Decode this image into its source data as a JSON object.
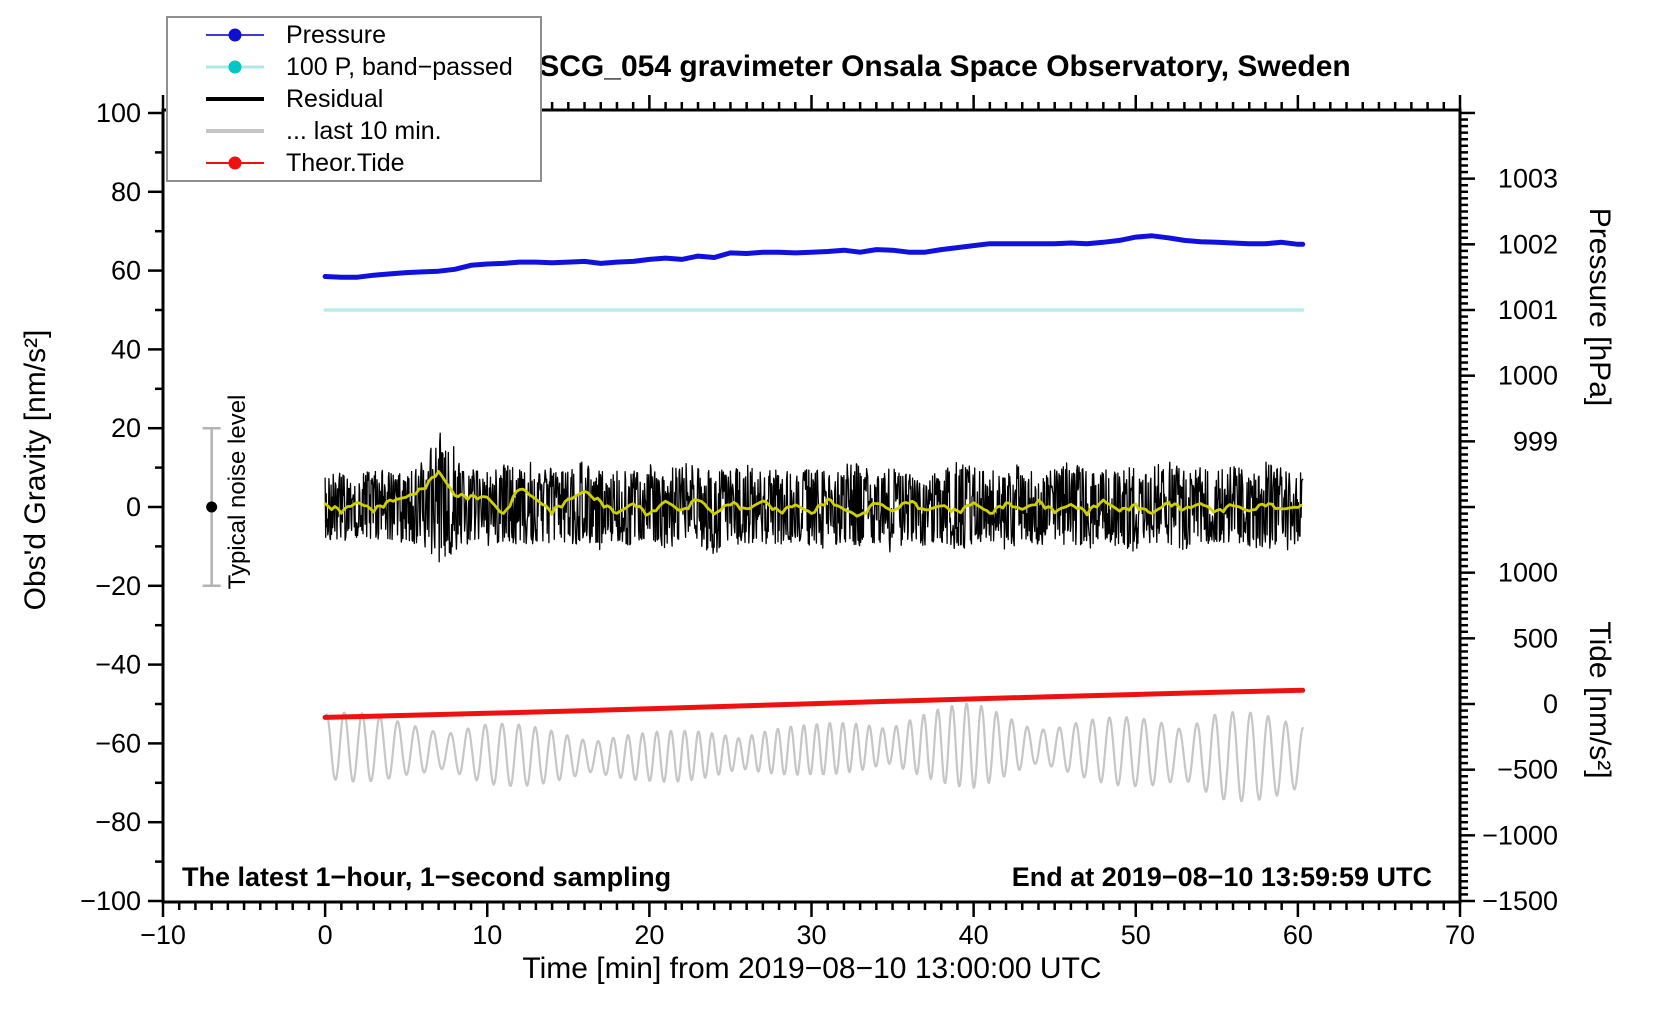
{
  "page": {
    "background": "#ffffff"
  },
  "colors": {
    "pressure_line": "#1111dd",
    "band_passed_line": "#b9ecec",
    "residual_line": "#000000",
    "residual_smooth_line": "#cfcf00",
    "last10_line": "#c6c6c6",
    "tide_line": "#ee1111",
    "noise_bar": "#b3b3b3",
    "frame": "#000000",
    "legend_border": "#8f8f8f"
  },
  "chart_data": {
    "type": "line",
    "title": "SCG_054 gravimeter Onsala Space Observatory, Sweden",
    "xlabel": "Time [min] from 2019−08−10 13:00:00 UTC",
    "ylabel_left": "Obs'd Gravity [nm/s²]",
    "ylabel_pressure": "Pressure [hPa]",
    "ylabel_tide": "Tide [nm/s²]",
    "annotations": {
      "sampling": "The latest 1−hour, 1−second sampling",
      "end_time": "End at 2019−08−10 13:59:59 UTC",
      "noise": "Typical noise level"
    },
    "legend": [
      {
        "label": "Pressure",
        "color": "#3b3bd8",
        "dot": "#0f0fd0",
        "line_width": 2.5,
        "has_dot": true
      },
      {
        "label": "100 P, band−passed",
        "color": "#ade9e9",
        "dot": "#00c6c6",
        "line_width": 3,
        "has_dot": true
      },
      {
        "label": "Residual",
        "color": "#000000",
        "dot": "#000000",
        "line_width": 4.5,
        "has_dot": false
      },
      {
        "label": "... last 10 min.",
        "color": "#c6c6c6",
        "dot": "#c6c6c6",
        "line_width": 4.5,
        "has_dot": false
      },
      {
        "label": "Theor.Tide",
        "color": "#ee1111",
        "dot": "#ee1111",
        "line_width": 2.5,
        "has_dot": true
      }
    ],
    "axes": {
      "x": {
        "min": -10,
        "max": 70,
        "major": 10,
        "minor": 1,
        "tick_labels": [
          -10,
          0,
          10,
          20,
          30,
          40,
          50,
          60,
          70
        ]
      },
      "gravity": {
        "min": -100,
        "max": 100,
        "major": 20,
        "minor": 10,
        "tick_labels": [
          100,
          80,
          60,
          40,
          20,
          0,
          -20,
          -40,
          -60,
          -80,
          -100
        ]
      },
      "pressure": {
        "tick_labels": [
          1003,
          1002,
          1001,
          1000,
          999
        ],
        "minor_step": 0.1,
        "minor_range": [
          997.7,
          1004.0
        ],
        "ref_hpa": 1001,
        "ref_gravity": 50,
        "gravity_per_hpa": 16.67
      },
      "tide": {
        "tick_labels": [
          1000,
          500,
          0,
          -500,
          -1000,
          -1500
        ],
        "minor_step": 50,
        "minor_range": [
          -1500,
          1350
        ],
        "ref_tide": 0,
        "ref_gravity": -50,
        "tide_per_gravity": 30
      }
    },
    "noise_bar": {
      "t": -7,
      "center_gravity": 0,
      "half_range": 20
    },
    "series": {
      "pressure_hpa": {
        "t_start": 0,
        "t_step": 1,
        "t_end": 60.3,
        "values": [
          1001.51,
          1001.5,
          1001.5,
          1001.53,
          1001.55,
          1001.57,
          1001.58,
          1001.59,
          1001.62,
          1001.68,
          1001.7,
          1001.71,
          1001.73,
          1001.73,
          1001.72,
          1001.73,
          1001.74,
          1001.71,
          1001.73,
          1001.74,
          1001.77,
          1001.79,
          1001.77,
          1001.82,
          1001.8,
          1001.87,
          1001.86,
          1001.88,
          1001.88,
          1001.87,
          1001.88,
          1001.89,
          1001.91,
          1001.88,
          1001.92,
          1001.91,
          1001.88,
          1001.88,
          1001.92,
          1001.95,
          1001.98,
          1002.01,
          1002.01,
          1002.01,
          1002.01,
          1002.01,
          1002.02,
          1002.01,
          1002.03,
          1002.06,
          1002.11,
          1002.13,
          1002.1,
          1002.06,
          1002.04,
          1002.03,
          1002.02,
          1002.01,
          1002.01,
          1002.03,
          1002.0
        ]
      },
      "band_passed_100P": {
        "gravity_value": 50,
        "t_start": 0,
        "t_end": 60.3
      },
      "residual_envelope": {
        "t_start": 0,
        "t_step": 1,
        "hi": [
          8,
          9,
          8,
          10,
          9,
          9,
          12,
          21,
          15,
          10,
          9,
          11,
          10,
          12,
          10,
          9,
          12,
          9,
          10,
          9,
          11,
          9,
          12,
          10,
          9,
          10,
          11,
          9,
          10,
          9,
          10,
          9,
          11,
          12,
          9,
          10,
          9,
          10,
          9,
          12,
          10,
          9,
          10,
          11,
          9,
          10,
          12,
          9,
          10,
          9,
          11,
          10,
          12,
          9,
          10,
          9,
          11,
          9,
          12,
          10,
          9
        ],
        "lo": [
          -8,
          -9,
          -8,
          -9,
          -10,
          -9,
          -10,
          -14,
          -12,
          -9,
          -10,
          -9,
          -11,
          -9,
          -10,
          -9,
          -10,
          -11,
          -9,
          -10,
          -9,
          -11,
          -9,
          -10,
          -12,
          -9,
          -10,
          -9,
          -11,
          -9,
          -10,
          -11,
          -9,
          -10,
          -9,
          -12,
          -9,
          -10,
          -9,
          -11,
          -10,
          -9,
          -11,
          -9,
          -10,
          -9,
          -10,
          -11,
          -9,
          -10,
          -12,
          -9,
          -10,
          -11,
          -9,
          -10,
          -9,
          -11,
          -10,
          -12,
          -9
        ]
      },
      "residual_smooth": {
        "t_start": 0,
        "t_step": 1,
        "values": [
          0.5,
          -1.0,
          1.2,
          -0.8,
          1.5,
          2.5,
          4.5,
          9.0,
          3.0,
          2.5,
          2.5,
          -2.0,
          5.0,
          2.0,
          -1.2,
          1.8,
          4.0,
          1.2,
          -1.6,
          0.9,
          -2.0,
          1.5,
          -1.1,
          2.2,
          -1.8,
          1.1,
          -0.7,
          1.6,
          -1.3,
          0.6,
          -1.6,
          1.8,
          -0.6,
          -2.4,
          1.3,
          -1.1,
          1.6,
          -0.9,
          0.4,
          -1.3,
          1.1,
          -1.6,
          0.9,
          -0.6,
          1.3,
          -1.1,
          0.6,
          -1.3,
          1.6,
          -0.9,
          0.3,
          -1.6,
          1.1,
          -0.6,
          0.9,
          -1.3,
          0.6,
          -1.1,
          0.9,
          -0.6,
          0.1
        ]
      },
      "theor_tide": {
        "t_start": 0,
        "t_step": 5,
        "t_end": 60.3,
        "tide_values": [
          -102,
          -87,
          -71,
          -54,
          -36,
          -17,
          2,
          21,
          39,
          56,
          72,
          89,
          104
        ]
      },
      "last10_min": {
        "t_start": 0,
        "t_end": 60.3,
        "center_tide": -360,
        "period_min": 0.95,
        "amp_t_step": 5,
        "amp_tide": [
          300,
          220,
          250,
          210,
          190,
          210,
          190,
          240,
          330,
          200,
          280,
          380,
          280
        ]
      }
    }
  }
}
